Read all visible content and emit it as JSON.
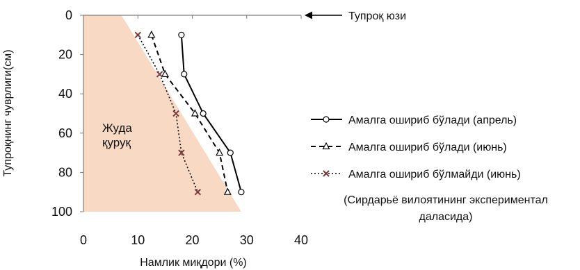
{
  "chart_data": {
    "type": "line",
    "xlabel": "Намлик миқдори (%)",
    "ylabel": "Тупроқнинг чуврлиги(см)",
    "xlim": [
      0,
      40
    ],
    "ylim": [
      0,
      100
    ],
    "y_inverted": true,
    "x_ticks": [
      0,
      10,
      20,
      30,
      40
    ],
    "y_ticks": [
      0,
      20,
      40,
      60,
      80,
      100
    ],
    "grid": false,
    "legend_position": "right",
    "series": [
      {
        "name": "Амалга ошириб бўлади (апрель)",
        "line_style": "solid",
        "marker": "circle",
        "points": [
          {
            "x": 18,
            "y": 10
          },
          {
            "x": 18.5,
            "y": 30
          },
          {
            "x": 22,
            "y": 50
          },
          {
            "x": 27,
            "y": 70
          },
          {
            "x": 29,
            "y": 90
          }
        ]
      },
      {
        "name": "Амалга ошириб бўлади (июнь)",
        "line_style": "dashed",
        "marker": "triangle",
        "points": [
          {
            "x": 12.5,
            "y": 10
          },
          {
            "x": 15,
            "y": 30
          },
          {
            "x": 20.5,
            "y": 50
          },
          {
            "x": 25,
            "y": 70
          },
          {
            "x": 26.5,
            "y": 90
          }
        ]
      },
      {
        "name": "Амалга ошириб бўлмайди (июнь)",
        "line_style": "dotted",
        "marker": "x",
        "points": [
          {
            "x": 10,
            "y": 10
          },
          {
            "x": 14,
            "y": 30
          },
          {
            "x": 17,
            "y": 50
          },
          {
            "x": 18,
            "y": 70
          },
          {
            "x": 21,
            "y": 90
          }
        ]
      }
    ],
    "shaded_region": {
      "label_line1": "Жуда",
      "label_line2": "қуруқ",
      "color": "#f8d9c4",
      "polygon": [
        {
          "x": 0,
          "y": 0
        },
        {
          "x": 7,
          "y": 0
        },
        {
          "x": 29,
          "y": 100
        },
        {
          "x": 0,
          "y": 100
        }
      ]
    },
    "annotations": {
      "surface": "Тупроқ юзи",
      "note_line1": "(Сирдарьё вилоятининг экспериментал",
      "note_line2": "даласида)"
    }
  }
}
